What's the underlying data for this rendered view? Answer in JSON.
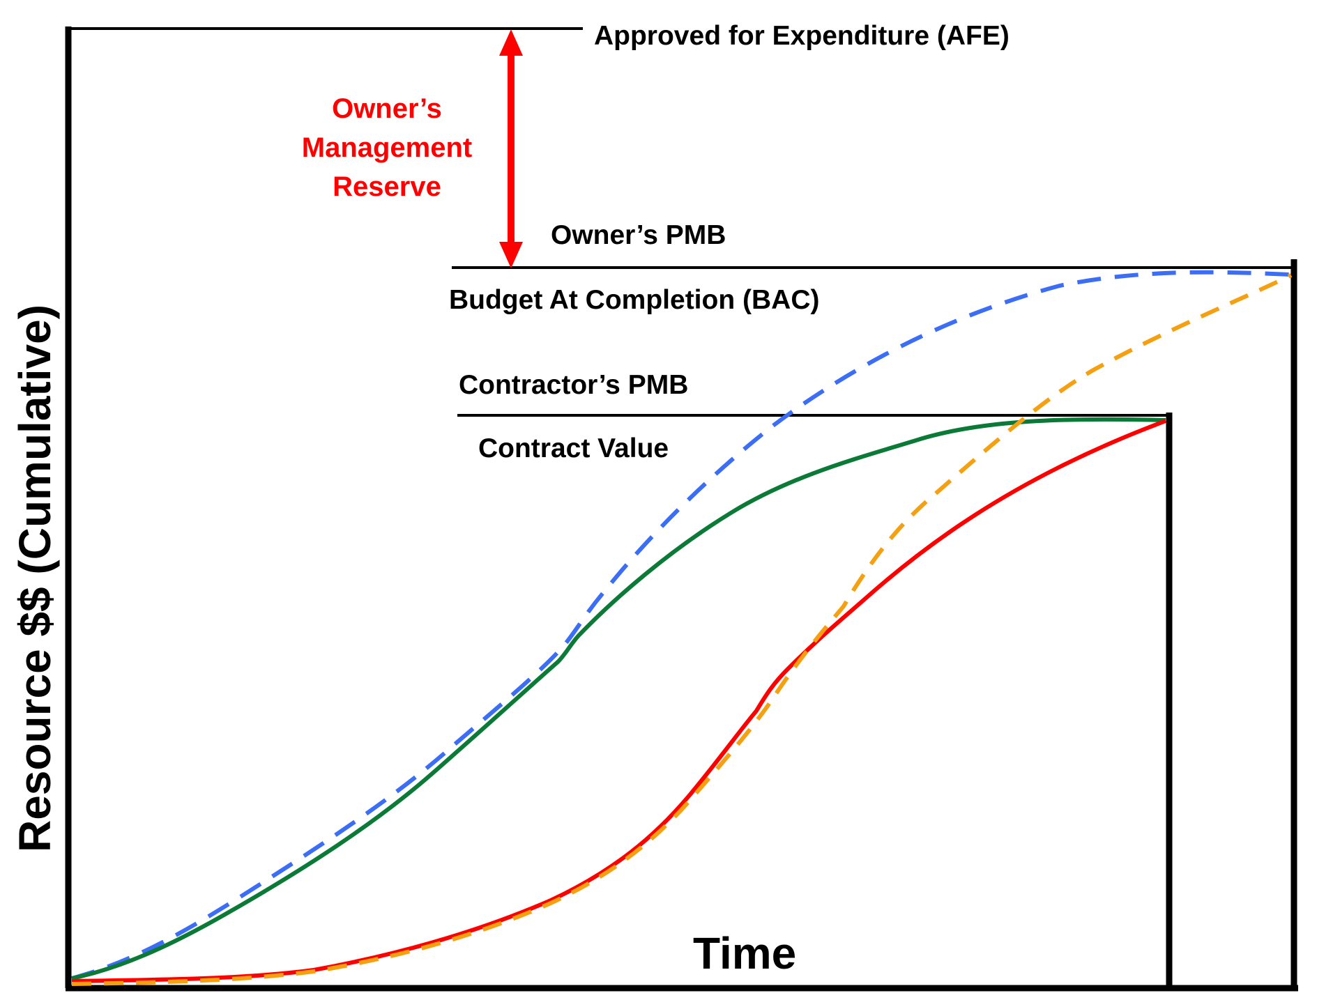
{
  "labels": {
    "afe": "Approved for Expenditure (AFE)",
    "owner_reserve": "Owner’s Management Reserve",
    "owner_pmb": "Owner’s PMB",
    "bac": "Budget At Completion (BAC)",
    "contractor_pmb": "Contractor’s PMB",
    "contract_value": "Contract Value",
    "x_axis": "Time",
    "y_axis": "Resource $$ (Cumulative)"
  },
  "colors": {
    "axes": "#000000",
    "reserve_arrow": "#ff0000",
    "owner_plan": "#3b6ef5",
    "contractor_plan": "#0b7a36",
    "contractor_actual": "#ff0000",
    "owner_actual": "#f5a011"
  },
  "curves": [
    {
      "key": "owner_plan",
      "style": "dashed",
      "color": "#3b6ef5"
    },
    {
      "key": "contractor_plan",
      "style": "solid",
      "color": "#0b7a36"
    },
    {
      "key": "contractor_actual",
      "style": "solid",
      "color": "#ff0000"
    },
    {
      "key": "owner_actual",
      "style": "dashed",
      "color": "#f5a011"
    }
  ]
}
